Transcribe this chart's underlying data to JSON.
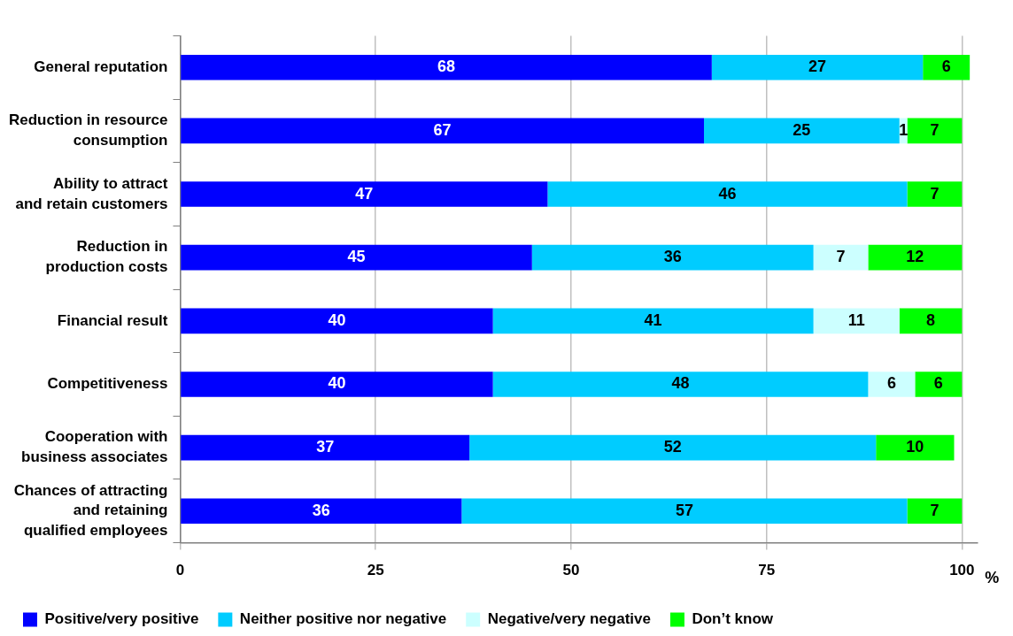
{
  "chart_data": {
    "type": "bar",
    "orientation": "horizontal",
    "stacked": true,
    "xlabel": "%",
    "categories": [
      "General reputation",
      "Reduction in resource consumption",
      "Ability to attract and retain customers",
      "Reduction in production costs",
      "Financial result",
      "Competitiveness",
      "Cooperation with business associates",
      "Chances of attracting and retaining qualified employees"
    ],
    "series": [
      {
        "name": "Positive/very positive",
        "color": "#0000ff",
        "values": [
          68,
          67,
          47,
          45,
          40,
          40,
          37,
          36
        ]
      },
      {
        "name": "Neither positive nor negative",
        "color": "#00ccff",
        "values": [
          27,
          25,
          46,
          36,
          41,
          48,
          52,
          57
        ]
      },
      {
        "name": "Negative/very negative",
        "color": "#ccffff",
        "values": [
          null,
          1,
          null,
          7,
          11,
          6,
          null,
          null
        ]
      },
      {
        "name": "Don’t know",
        "color": "#00ff00",
        "values": [
          6,
          7,
          7,
          12,
          8,
          6,
          10,
          7
        ]
      }
    ],
    "xlim": [
      0,
      102
    ],
    "xticks": [
      0,
      25,
      50,
      75,
      100
    ],
    "grid": "x",
    "legend": "bottom",
    "data_labels": true
  }
}
